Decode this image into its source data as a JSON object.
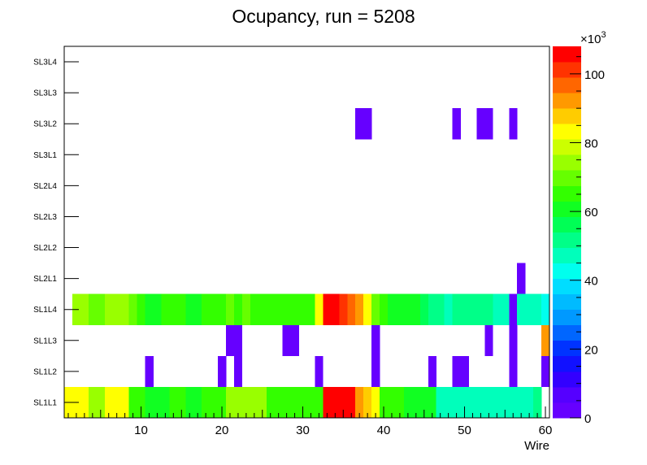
{
  "chart_data": {
    "type": "heatmap",
    "title": "Ocupancy, run = 5208",
    "xlabel": "Wire",
    "ylabel": "",
    "xlim": [
      0.5,
      60.5
    ],
    "x_ticks": [
      "10",
      "20",
      "30",
      "40",
      "50",
      "60"
    ],
    "y_categories": [
      "SL1L1",
      "SL1L2",
      "SL1L3",
      "SL1L4",
      "SL2L1",
      "SL2L2",
      "SL2L3",
      "SL2L4",
      "SL3L1",
      "SL3L2",
      "SL3L3",
      "SL3L4"
    ],
    "colorbar": {
      "range": [
        0,
        108000
      ],
      "ticks": [
        "0",
        "20",
        "40",
        "60",
        "80",
        "100"
      ],
      "tick_values": [
        0,
        20000,
        40000,
        60000,
        80000,
        100000
      ],
      "exponent_base": "×10",
      "exponent": "3",
      "palette": [
        "#6600ff",
        "#5500ff",
        "#3300ff",
        "#1111ff",
        "#0033ff",
        "#0066ff",
        "#0099ff",
        "#00bbff",
        "#00ddff",
        "#00ffee",
        "#00ffbb",
        "#00ff88",
        "#00ff55",
        "#11ff22",
        "#33ff00",
        "#66ff00",
        "#99ff00",
        "#ccff00",
        "#ffff00",
        "#ffcc00",
        "#ff9900",
        "#ff6600",
        "#ff3300",
        "#ff0000"
      ]
    },
    "rows": {
      "SL1L1": [
        85000,
        85000,
        85000,
        72000,
        72000,
        82000,
        82000,
        82000,
        67000,
        63000,
        59000,
        59000,
        59000,
        63000,
        63000,
        59000,
        59000,
        67000,
        67000,
        67000,
        72000,
        72000,
        72000,
        72000,
        72000,
        67000,
        67000,
        67000,
        67000,
        67000,
        67000,
        67000,
        104000,
        104000,
        104000,
        104000,
        92000,
        88000,
        82000,
        63000,
        63000,
        63000,
        59000,
        59000,
        59000,
        59000,
        49000,
        49000,
        49000,
        49000,
        49000,
        49000,
        49000,
        49000,
        49000,
        49000,
        49000,
        49000,
        53000,
        null
      ],
      "SL1L2": [
        null,
        null,
        null,
        null,
        null,
        null,
        null,
        null,
        null,
        null,
        3000,
        null,
        null,
        null,
        null,
        null,
        null,
        null,
        null,
        3000,
        null,
        3000,
        null,
        null,
        null,
        null,
        null,
        null,
        null,
        null,
        null,
        3000,
        null,
        null,
        null,
        null,
        null,
        null,
        3000,
        null,
        null,
        null,
        null,
        null,
        null,
        3000,
        null,
        null,
        3000,
        3000,
        null,
        null,
        null,
        null,
        null,
        3000,
        null,
        null,
        null,
        3000
      ],
      "SL1L3": [
        null,
        null,
        null,
        null,
        null,
        null,
        null,
        null,
        null,
        null,
        null,
        null,
        null,
        null,
        null,
        null,
        null,
        null,
        null,
        null,
        3000,
        3000,
        null,
        null,
        null,
        null,
        null,
        3000,
        3000,
        null,
        null,
        null,
        null,
        null,
        null,
        null,
        null,
        null,
        3000,
        null,
        null,
        null,
        null,
        null,
        null,
        null,
        null,
        null,
        null,
        null,
        null,
        null,
        3000,
        null,
        null,
        3000,
        null,
        null,
        null,
        92000
      ],
      "SL1L4": [
        null,
        72000,
        72000,
        68000,
        68000,
        72000,
        72000,
        72000,
        68000,
        64000,
        60000,
        60000,
        64000,
        64000,
        64000,
        60000,
        60000,
        64000,
        64000,
        64000,
        68000,
        64000,
        68000,
        64000,
        64000,
        64000,
        64000,
        64000,
        64000,
        64000,
        64000,
        85000,
        104000,
        104000,
        100000,
        96000,
        92000,
        85000,
        68000,
        64000,
        60000,
        60000,
        60000,
        60000,
        56000,
        52000,
        52000,
        49000,
        52000,
        52000,
        52000,
        52000,
        52000,
        49000,
        49000,
        3000,
        45000,
        45000,
        45000,
        42000
      ],
      "SL2L1": [
        null,
        null,
        null,
        null,
        null,
        null,
        null,
        null,
        null,
        null,
        null,
        null,
        null,
        null,
        null,
        null,
        null,
        null,
        null,
        null,
        null,
        null,
        null,
        null,
        null,
        null,
        null,
        null,
        null,
        null,
        null,
        null,
        null,
        null,
        null,
        null,
        null,
        null,
        null,
        null,
        null,
        null,
        null,
        null,
        null,
        null,
        null,
        null,
        null,
        null,
        null,
        null,
        null,
        null,
        null,
        null,
        3000,
        null,
        null,
        null
      ],
      "SL2L2": [],
      "SL2L3": [],
      "SL2L4": [],
      "SL3L1": [],
      "SL3L2": [
        null,
        null,
        null,
        null,
        null,
        null,
        null,
        null,
        null,
        null,
        null,
        null,
        null,
        null,
        null,
        null,
        null,
        null,
        null,
        null,
        null,
        null,
        null,
        null,
        null,
        null,
        null,
        null,
        null,
        null,
        null,
        null,
        null,
        null,
        null,
        null,
        3000,
        3000,
        null,
        null,
        null,
        null,
        null,
        null,
        null,
        null,
        null,
        null,
        3000,
        null,
        null,
        3000,
        3000,
        null,
        null,
        3000,
        null,
        null,
        null,
        null
      ],
      "SL3L3": [],
      "SL3L4": []
    }
  }
}
